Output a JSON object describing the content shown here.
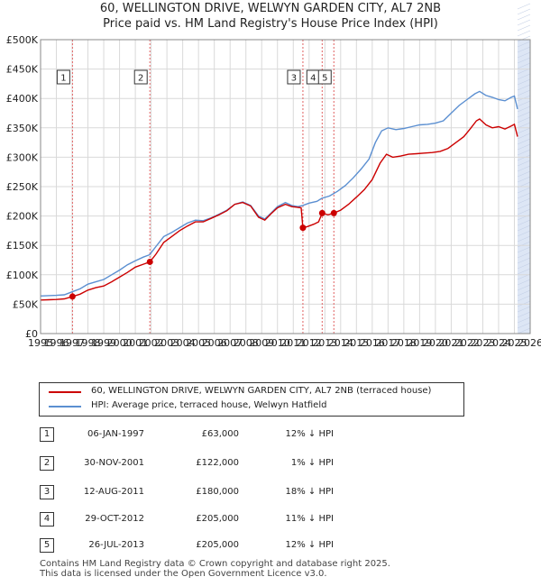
{
  "title": {
    "line1": "60, WELLINGTON DRIVE, WELWYN GARDEN CITY, AL7 2NB",
    "line2": "Price paid vs. HM Land Registry's House Price Index (HPI)"
  },
  "colors": {
    "price_paid": "#cc0000",
    "hpi": "#5b8fd1",
    "shade": "#dde6f5",
    "grid": "#d9d9d9",
    "sale_line": "#e06060"
  },
  "legend": {
    "price_paid_label": "60, WELLINGTON DRIVE, WELWYN GARDEN CITY, AL7 2NB (terraced house)",
    "hpi_label": "HPI: Average price, terraced house, Welwyn Hatfield"
  },
  "sales": [
    {
      "num": "1",
      "date": "06-JAN-1997",
      "price": "£63,000",
      "hpi": "12% ↓ HPI"
    },
    {
      "num": "2",
      "date": "30-NOV-2001",
      "price": "£122,000",
      "hpi": "1% ↓ HPI"
    },
    {
      "num": "3",
      "date": "12-AUG-2011",
      "price": "£180,000",
      "hpi": "18% ↓ HPI"
    },
    {
      "num": "4",
      "date": "29-OCT-2012",
      "price": "£205,000",
      "hpi": "11% ↓ HPI"
    },
    {
      "num": "5",
      "date": "26-JUL-2013",
      "price": "£205,000",
      "hpi": "12% ↓ HPI"
    }
  ],
  "footer": {
    "line1": "Contains HM Land Registry data © Crown copyright and database right 2025.",
    "line2": "This data is licensed under the Open Government Licence v3.0."
  },
  "chart_data": {
    "type": "line",
    "x_range": [
      1995,
      2026
    ],
    "y_range": [
      0,
      500000
    ],
    "y_ticks": [
      {
        "value": 0,
        "label": "£0"
      },
      {
        "value": 50000,
        "label": "£50K"
      },
      {
        "value": 100000,
        "label": "£100K"
      },
      {
        "value": 150000,
        "label": "£150K"
      },
      {
        "value": 200000,
        "label": "£200K"
      },
      {
        "value": 250000,
        "label": "£250K"
      },
      {
        "value": 300000,
        "label": "£300K"
      },
      {
        "value": 350000,
        "label": "£350K"
      },
      {
        "value": 400000,
        "label": "£400K"
      },
      {
        "value": 450000,
        "label": "£450K"
      },
      {
        "value": 500000,
        "label": "£500K"
      }
    ],
    "x_ticks": [
      "1995",
      "1996",
      "1997",
      "1998",
      "1999",
      "2000",
      "2001",
      "2002",
      "2003",
      "2004",
      "2005",
      "2006",
      "2007",
      "2008",
      "2009",
      "2010",
      "2011",
      "2012",
      "2013",
      "2014",
      "2015",
      "2016",
      "2017",
      "2018",
      "2019",
      "2020",
      "2021",
      "2022",
      "2023",
      "2024",
      "2025",
      "2026"
    ],
    "grid": true,
    "future_shade_from": 2025.2,
    "series": [
      {
        "name": "HPI: Average price, terraced house, Welwyn Hatfield",
        "color": "#5b8fd1",
        "points": [
          [
            1995.0,
            64000
          ],
          [
            1995.5,
            64500
          ],
          [
            1996.0,
            65000
          ],
          [
            1996.5,
            66000
          ],
          [
            1997.0,
            71000
          ],
          [
            1997.5,
            76000
          ],
          [
            1998.0,
            84000
          ],
          [
            1998.5,
            88000
          ],
          [
            1999.0,
            92000
          ],
          [
            1999.5,
            100000
          ],
          [
            2000.0,
            108000
          ],
          [
            2000.5,
            117000
          ],
          [
            2001.0,
            124000
          ],
          [
            2001.5,
            130000
          ],
          [
            2001.9,
            134000
          ],
          [
            2002.3,
            148000
          ],
          [
            2002.8,
            165000
          ],
          [
            2003.3,
            172000
          ],
          [
            2003.8,
            180000
          ],
          [
            2004.3,
            188000
          ],
          [
            2004.8,
            193000
          ],
          [
            2005.3,
            192000
          ],
          [
            2005.8,
            197000
          ],
          [
            2006.3,
            203000
          ],
          [
            2006.8,
            210000
          ],
          [
            2007.3,
            220000
          ],
          [
            2007.8,
            224000
          ],
          [
            2008.3,
            218000
          ],
          [
            2008.8,
            200000
          ],
          [
            2009.2,
            195000
          ],
          [
            2009.6,
            205000
          ],
          [
            2010.0,
            216000
          ],
          [
            2010.5,
            223000
          ],
          [
            2010.9,
            218000
          ],
          [
            2011.3,
            216000
          ],
          [
            2011.6,
            218000
          ],
          [
            2012.0,
            222000
          ],
          [
            2012.5,
            225000
          ],
          [
            2012.8,
            230000
          ],
          [
            2013.3,
            234000
          ],
          [
            2013.8,
            242000
          ],
          [
            2014.3,
            252000
          ],
          [
            2014.8,
            265000
          ],
          [
            2015.3,
            280000
          ],
          [
            2015.8,
            297000
          ],
          [
            2016.2,
            325000
          ],
          [
            2016.6,
            345000
          ],
          [
            2017.0,
            350000
          ],
          [
            2017.5,
            347000
          ],
          [
            2018.0,
            349000
          ],
          [
            2018.5,
            352000
          ],
          [
            2019.0,
            355000
          ],
          [
            2019.5,
            356000
          ],
          [
            2020.0,
            358000
          ],
          [
            2020.5,
            362000
          ],
          [
            2021.0,
            375000
          ],
          [
            2021.5,
            388000
          ],
          [
            2022.0,
            398000
          ],
          [
            2022.5,
            408000
          ],
          [
            2022.8,
            412000
          ],
          [
            2023.2,
            405000
          ],
          [
            2023.6,
            402000
          ],
          [
            2024.0,
            398000
          ],
          [
            2024.4,
            396000
          ],
          [
            2024.8,
            402000
          ],
          [
            2025.0,
            404000
          ],
          [
            2025.2,
            382000
          ]
        ]
      },
      {
        "name": "60, WELLINGTON DRIVE, WELWYN GARDEN CITY, AL7 2NB (terraced house)",
        "color": "#cc0000",
        "points": [
          [
            1995.0,
            57000
          ],
          [
            1995.5,
            57500
          ],
          [
            1996.0,
            58000
          ],
          [
            1996.5,
            59000
          ],
          [
            1997.02,
            63000
          ],
          [
            1997.5,
            67000
          ],
          [
            1998.0,
            74000
          ],
          [
            1998.5,
            78000
          ],
          [
            1999.0,
            81000
          ],
          [
            1999.5,
            88000
          ],
          [
            2000.0,
            96000
          ],
          [
            2000.5,
            104000
          ],
          [
            2001.0,
            113000
          ],
          [
            2001.5,
            118000
          ],
          [
            2001.92,
            122000
          ],
          [
            2002.3,
            135000
          ],
          [
            2002.8,
            155000
          ],
          [
            2003.3,
            165000
          ],
          [
            2003.8,
            175000
          ],
          [
            2004.3,
            183000
          ],
          [
            2004.8,
            190000
          ],
          [
            2005.3,
            190000
          ],
          [
            2005.8,
            196000
          ],
          [
            2006.3,
            202000
          ],
          [
            2006.8,
            209000
          ],
          [
            2007.3,
            220000
          ],
          [
            2007.8,
            223000
          ],
          [
            2008.3,
            217000
          ],
          [
            2008.8,
            198000
          ],
          [
            2009.2,
            193000
          ],
          [
            2009.6,
            204000
          ],
          [
            2010.0,
            214000
          ],
          [
            2010.5,
            220000
          ],
          [
            2010.9,
            216000
          ],
          [
            2011.2,
            215000
          ],
          [
            2011.5,
            214000
          ],
          [
            2011.61,
            180000
          ],
          [
            2011.9,
            182000
          ],
          [
            2012.3,
            186000
          ],
          [
            2012.6,
            190000
          ],
          [
            2012.83,
            205000
          ],
          [
            2013.2,
            202000
          ],
          [
            2013.57,
            205000
          ],
          [
            2014.0,
            210000
          ],
          [
            2014.5,
            220000
          ],
          [
            2015.0,
            232000
          ],
          [
            2015.5,
            245000
          ],
          [
            2016.0,
            262000
          ],
          [
            2016.5,
            290000
          ],
          [
            2016.9,
            305000
          ],
          [
            2017.3,
            300000
          ],
          [
            2017.8,
            302000
          ],
          [
            2018.3,
            305000
          ],
          [
            2018.8,
            306000
          ],
          [
            2019.3,
            307000
          ],
          [
            2019.8,
            308000
          ],
          [
            2020.3,
            310000
          ],
          [
            2020.8,
            315000
          ],
          [
            2021.3,
            325000
          ],
          [
            2021.8,
            335000
          ],
          [
            2022.2,
            348000
          ],
          [
            2022.6,
            362000
          ],
          [
            2022.8,
            365000
          ],
          [
            2023.2,
            355000
          ],
          [
            2023.6,
            350000
          ],
          [
            2024.0,
            352000
          ],
          [
            2024.4,
            348000
          ],
          [
            2024.8,
            353000
          ],
          [
            2025.0,
            356000
          ],
          [
            2025.2,
            335000
          ]
        ]
      }
    ],
    "sale_markers": [
      {
        "label": "1",
        "x": 1997.02,
        "y": 63000
      },
      {
        "label": "2",
        "x": 2001.92,
        "y": 122000
      },
      {
        "label": "3",
        "x": 2011.61,
        "y": 180000
      },
      {
        "label": "4",
        "x": 2012.83,
        "y": 205000
      },
      {
        "label": "5",
        "x": 2013.57,
        "y": 205000
      }
    ]
  }
}
